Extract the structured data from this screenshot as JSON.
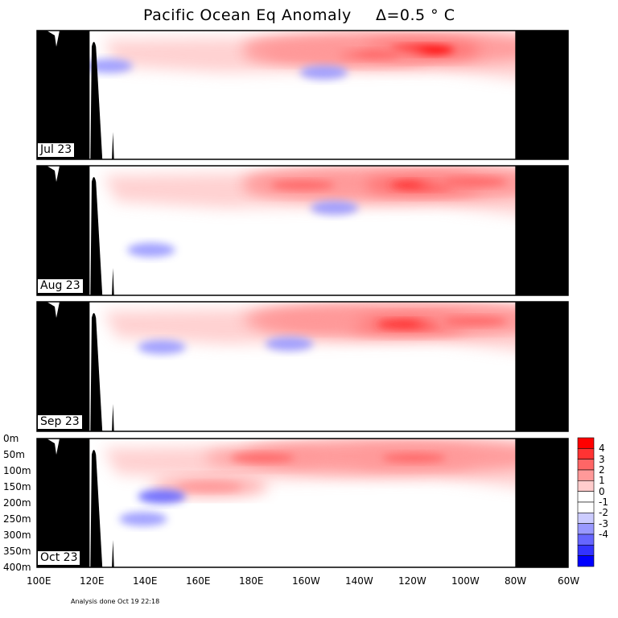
{
  "chart_data": {
    "type": "heatmap",
    "title": "Pacific Ocean Eq Anomaly",
    "interval_label": "Δ=0.5 ° C",
    "panels": [
      {
        "label": "Jul 23",
        "month": "Jul 23",
        "warm_cores": [
          {
            "lon": 245,
            "depth": 60,
            "value": 4.0
          },
          {
            "lon": 225,
            "depth": 75,
            "value": 2.5
          },
          {
            "lon": 200,
            "depth": 70,
            "value": 1.5
          }
        ],
        "cool_spots": [
          {
            "lon": 127,
            "depth": 110,
            "value": -1.0
          },
          {
            "lon": 208,
            "depth": 130,
            "value": -1.0
          }
        ]
      },
      {
        "label": "Aug 23",
        "month": "Aug 23",
        "warm_cores": [
          {
            "lon": 245,
            "depth": 60,
            "value": 3.0
          },
          {
            "lon": 200,
            "depth": 60,
            "value": 2.0
          },
          {
            "lon": 265,
            "depth": 50,
            "value": 2.5
          }
        ],
        "cool_spots": [
          {
            "lon": 143,
            "depth": 260,
            "value": -1.0
          },
          {
            "lon": 212,
            "depth": 130,
            "value": -1.0
          }
        ]
      },
      {
        "label": "Sep 23",
        "month": "Sep 23",
        "warm_cores": [
          {
            "lon": 240,
            "depth": 70,
            "value": 3.0
          },
          {
            "lon": 205,
            "depth": 60,
            "value": 1.5
          },
          {
            "lon": 265,
            "depth": 60,
            "value": 2.0
          }
        ],
        "cool_spots": [
          {
            "lon": 147,
            "depth": 140,
            "value": -1.5
          },
          {
            "lon": 195,
            "depth": 130,
            "value": -1.0
          }
        ]
      },
      {
        "label": "Oct 23",
        "month": "Oct 23",
        "warm_cores": [
          {
            "lon": 242,
            "depth": 60,
            "value": 2.5
          },
          {
            "lon": 185,
            "depth": 60,
            "value": 2.0
          },
          {
            "lon": 165,
            "depth": 150,
            "value": 1.5
          }
        ],
        "cool_spots": [
          {
            "lon": 147,
            "depth": 180,
            "value": -2.0
          },
          {
            "lon": 140,
            "depth": 250,
            "value": -1.0
          }
        ]
      }
    ],
    "x_axis": {
      "range": [
        100,
        300
      ],
      "tick_values": [
        100,
        120,
        140,
        160,
        180,
        200,
        220,
        240,
        260,
        280,
        300
      ],
      "tick_labels": [
        "100E",
        "120E",
        "140E",
        "160E",
        "180E",
        "160W",
        "140W",
        "120W",
        "100W",
        "80W",
        "60W"
      ]
    },
    "y_axis": {
      "range": [
        0,
        400
      ],
      "reversed": true,
      "tick_values": [
        0,
        50,
        100,
        150,
        200,
        250,
        300,
        350,
        400
      ],
      "tick_labels": [
        "0m",
        "50m",
        "100m",
        "150m",
        "200m",
        "250m",
        "300m",
        "350m",
        "400m"
      ]
    },
    "colorbar": {
      "levels": [
        -4,
        -3,
        -2,
        -1,
        0,
        1,
        2,
        3,
        4
      ],
      "labels": [
        "4",
        "3",
        "2",
        "1",
        "0",
        "-1",
        "-2",
        "-3",
        "-4"
      ],
      "colors": [
        "#ff0000",
        "#ff3333",
        "#ff6666",
        "#ff9999",
        "#ffcccc",
        "#ffffff",
        "#ffffff",
        "#ccccff",
        "#9999ff",
        "#6666ff",
        "#3333ff",
        "#0000ff"
      ]
    },
    "land_color": "#000000",
    "footnote": "Analysis done Oct 19 22:18"
  }
}
